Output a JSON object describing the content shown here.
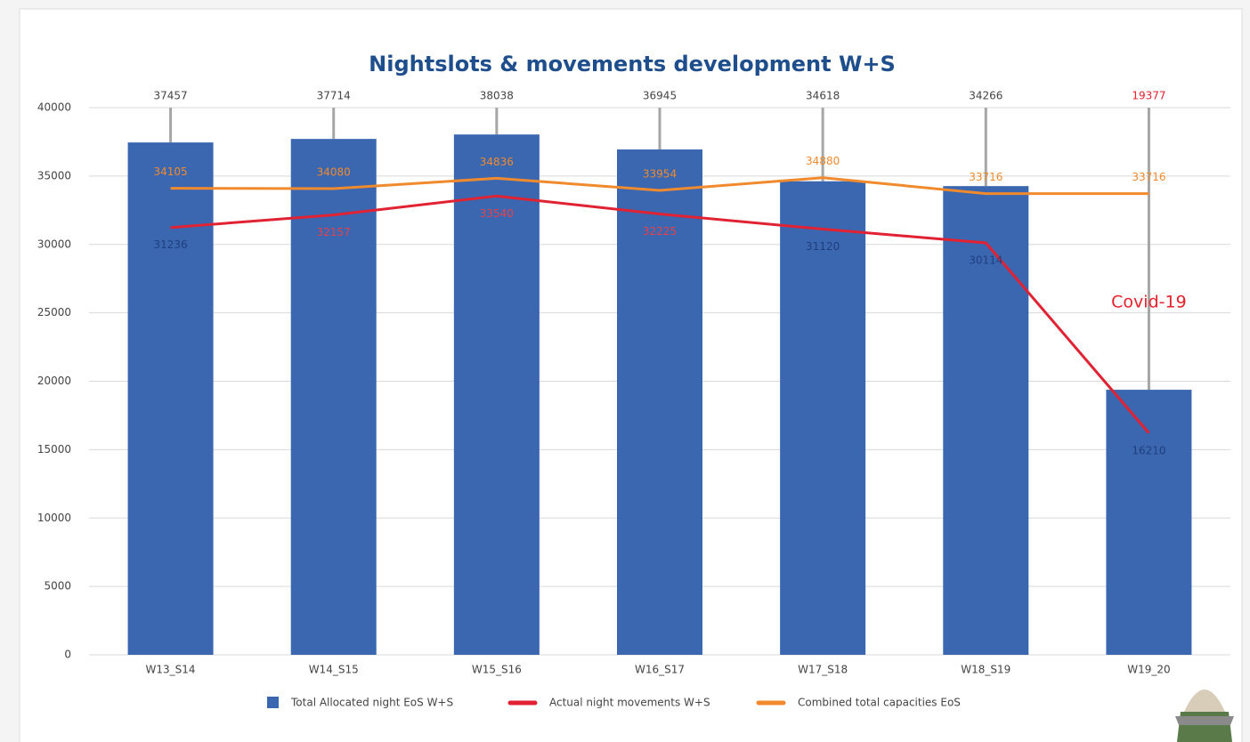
{
  "chart_data": {
    "type": "bar",
    "title": "Nightslots & movements development W+S",
    "categories": [
      "W13_S14",
      "W14_S15",
      "W15_S16",
      "W16_S17",
      "W17_S18",
      "W18_S19",
      "W19_20"
    ],
    "series": [
      {
        "name": "Total Allocated night EoS W+S",
        "type": "bar",
        "color": "#3b67b0",
        "values": [
          37457,
          37714,
          38038,
          36945,
          34618,
          34266,
          19377
        ],
        "label_colors": [
          "#444444",
          "#444444",
          "#444444",
          "#444444",
          "#444444",
          "#444444",
          "#e8202e"
        ]
      },
      {
        "name": "Actual night movements W+S",
        "type": "line",
        "color": "#e02233",
        "values": [
          31236,
          32157,
          33540,
          32225,
          31120,
          30114,
          16210
        ],
        "label_colors": [
          "#1f3f80",
          "#e8404a",
          "#e8404a",
          "#e8404a",
          "#1f3f80",
          "#1f3f80",
          "#1f3f80"
        ]
      },
      {
        "name": "Combined total capacities EoS",
        "type": "line",
        "color": "#f08a2c",
        "values": [
          34105,
          34080,
          34836,
          33954,
          34880,
          33716,
          33716
        ],
        "label_colors": [
          "#f08a2c",
          "#f08a2c",
          "#f08a2c",
          "#f08a2c",
          "#f08a2c",
          "#f08a2c",
          "#f08a2c"
        ]
      }
    ],
    "annotation": "Covid-19",
    "annotation_color": "#e8202e",
    "ylim": [
      0,
      40000
    ],
    "yticks": [
      0,
      5000,
      10000,
      15000,
      20000,
      25000,
      30000,
      35000,
      40000
    ],
    "grid": true,
    "legend": "bottom"
  }
}
